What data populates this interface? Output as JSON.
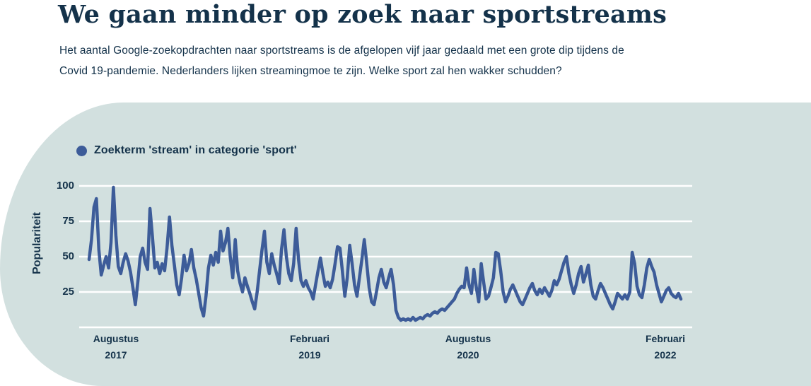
{
  "header": {
    "title": "We gaan minder op zoek naar sportstreams",
    "subtitle_line1": "Het aantal Google-zoekopdrachten naar sportstreams is de afgelopen vijf jaar gedaald met een grote dip tijdens de",
    "subtitle_line2": "Covid 19-pandemie. Nederlanders lijken streamingmoe te zijn. Welke sport zal hen wakker schudden?"
  },
  "chart_data": {
    "type": "line",
    "legend": {
      "label": "Zoekterm 'stream' in categorie 'sport'",
      "marker": "dot",
      "position": "top-left"
    },
    "ylabel": "Populariteit",
    "ylim": [
      0,
      100
    ],
    "grid": true,
    "grid_values": [
      100,
      75,
      50,
      25,
      0
    ],
    "ytick_labels": [
      "100",
      "75",
      "50",
      "25"
    ],
    "xticks": [
      {
        "line1": "Augustus",
        "line2": "2017"
      },
      {
        "line1": "Februari",
        "line2": "2019"
      },
      {
        "line1": "Augustus",
        "line2": "2020"
      },
      {
        "line1": "Februari",
        "line2": "2022"
      }
    ],
    "series": [
      {
        "name": "Zoekterm 'stream' in categorie 'sport'",
        "values": [
          48,
          62,
          85,
          91,
          55,
          37,
          44,
          50,
          42,
          60,
          99,
          65,
          43,
          38,
          46,
          52,
          47,
          39,
          28,
          16,
          32,
          50,
          56,
          46,
          41,
          84,
          64,
          42,
          46,
          38,
          45,
          40,
          56,
          78,
          58,
          44,
          30,
          23,
          35,
          51,
          40,
          45,
          55,
          42,
          34,
          24,
          14,
          8,
          22,
          42,
          51,
          44,
          53,
          46,
          68,
          54,
          60,
          70,
          49,
          35,
          62,
          40,
          31,
          25,
          35,
          29,
          24,
          18,
          13,
          25,
          40,
          55,
          68,
          46,
          38,
          52,
          44,
          38,
          31,
          55,
          69,
          50,
          38,
          33,
          45,
          70,
          48,
          33,
          29,
          33,
          28,
          25,
          20,
          30,
          40,
          49,
          38,
          29,
          32,
          28,
          34,
          45,
          57,
          56,
          40,
          22,
          35,
          58,
          45,
          30,
          22,
          35,
          48,
          62,
          45,
          28,
          18,
          16,
          25,
          35,
          41,
          32,
          28,
          35,
          41,
          30,
          12,
          7,
          5,
          6,
          5,
          6,
          5,
          7,
          5,
          6,
          7,
          6,
          8,
          9,
          8,
          10,
          11,
          10,
          12,
          13,
          12,
          14,
          16,
          18,
          20,
          24,
          27,
          29,
          28,
          42,
          30,
          24,
          41,
          28,
          18,
          45,
          32,
          20,
          22,
          28,
          35,
          53,
          52,
          40,
          25,
          18,
          22,
          27,
          30,
          26,
          22,
          18,
          16,
          20,
          24,
          28,
          31,
          26,
          23,
          27,
          24,
          28,
          25,
          22,
          26,
          33,
          30,
          34,
          40,
          46,
          50,
          38,
          30,
          24,
          30,
          38,
          43,
          32,
          38,
          44,
          30,
          22,
          20,
          26,
          31,
          28,
          24,
          20,
          16,
          13,
          18,
          24,
          22,
          20,
          23,
          20,
          25,
          53,
          45,
          29,
          23,
          21,
          30,
          42,
          48,
          43,
          39,
          30,
          24,
          18,
          22,
          26,
          28,
          24,
          22,
          21,
          24,
          20
        ]
      }
    ],
    "colors": {
      "line": "#3d5c99",
      "grid": "#ffffff",
      "panel_bg": "#d2e0df",
      "text": "#14324a"
    }
  }
}
